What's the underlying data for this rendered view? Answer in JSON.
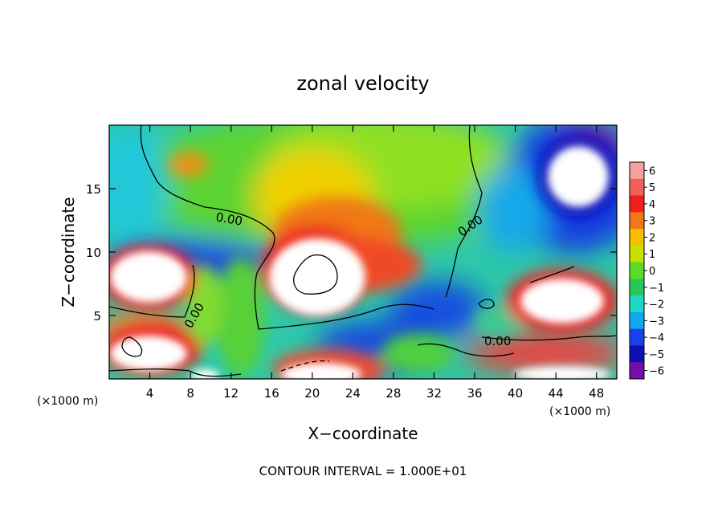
{
  "chart_data": {
    "type": "heatmap",
    "title": "zonal velocity",
    "xlabel": "X−coordinate",
    "ylabel": "Z−coordinate",
    "x_unit": "(×1000 m)",
    "z_unit": "(×1000 m)",
    "xlim": [
      0,
      50
    ],
    "ylim": [
      0,
      20
    ],
    "x_ticks": [
      4,
      8,
      12,
      16,
      20,
      24,
      28,
      32,
      36,
      40,
      44,
      48
    ],
    "x_tick_labels": [
      "4",
      "8",
      "12",
      "16",
      "20",
      "24",
      "28",
      "32",
      "36",
      "40",
      "44",
      "48"
    ],
    "y_ticks": [
      5,
      10,
      15
    ],
    "y_tick_labels": [
      "5",
      "10",
      "15"
    ],
    "colorbar": {
      "levels": [
        6,
        5,
        4,
        3,
        2,
        1,
        0,
        -1,
        -2,
        -3,
        -4,
        -5,
        -6
      ],
      "labels": [
        "6",
        "5",
        "4",
        "3",
        "2",
        "1",
        "0",
        "−1",
        "−2",
        "−3",
        "−4",
        "−5",
        "−6"
      ],
      "colors": [
        "#f5a0a0",
        "#f0605a",
        "#ee2020",
        "#f07818",
        "#f2c000",
        "#c8e000",
        "#60d828",
        "#28c858",
        "#20d8c8",
        "#10a8ee",
        "#1c40e8",
        "#1010b0",
        "#7010a8"
      ]
    },
    "contour_labels": [
      "0.00",
      "0.00",
      "0.00",
      "0.00"
    ],
    "grid": false,
    "legend": "colorbar-right"
  },
  "footer": {
    "contour_interval": "CONTOUR INTERVAL = 1.000E+01"
  }
}
